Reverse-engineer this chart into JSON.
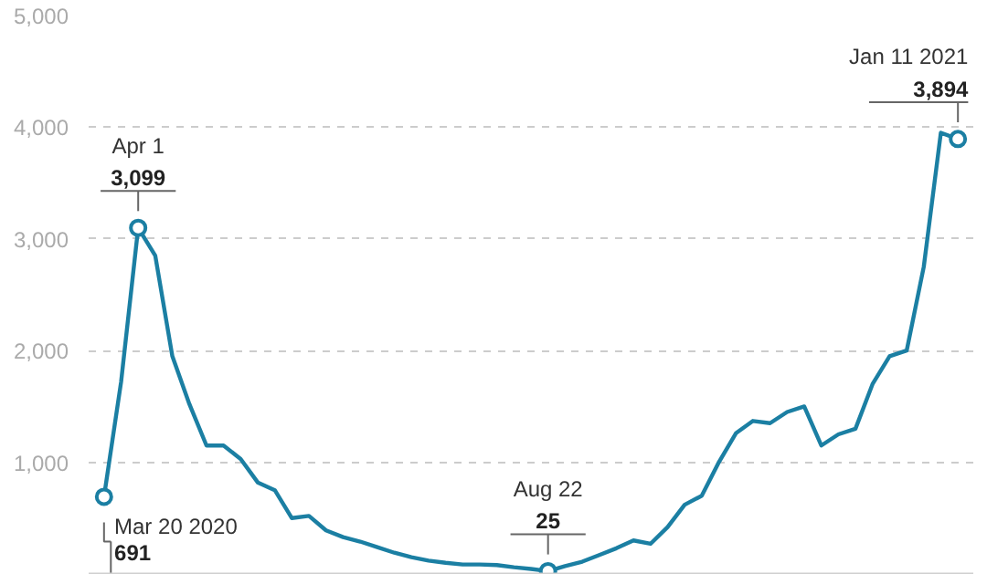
{
  "chart_data": {
    "type": "line",
    "categories": [
      null,
      null,
      null,
      null,
      null,
      null,
      null,
      null,
      null,
      null,
      null,
      null,
      null,
      null,
      null,
      null,
      null,
      null,
      null,
      null,
      null,
      null,
      null,
      null,
      null,
      null,
      null,
      null,
      null,
      null,
      null,
      null,
      null,
      null,
      null,
      null,
      null,
      null,
      null,
      null,
      null,
      null,
      null,
      null,
      null,
      null,
      null,
      null,
      null,
      null,
      null
    ],
    "series": [
      {
        "color": "#1b7fa3",
        "values": [
          691,
          1720,
          3099,
          2850,
          1950,
          1520,
          1150,
          1150,
          1030,
          820,
          750,
          500,
          520,
          390,
          330,
          290,
          240,
          190,
          150,
          120,
          100,
          85,
          85,
          80,
          60,
          45,
          25,
          70,
          110,
          170,
          230,
          300,
          270,
          420,
          620,
          700,
          1000,
          1260,
          1370,
          1350,
          1450,
          1500,
          1150,
          1250,
          1300,
          1700,
          1950,
          2000,
          2750,
          3950,
          3894
        ],
        "value_labels": [
          "691",
          null,
          "3,099",
          null,
          null,
          null,
          null,
          null,
          null,
          null,
          null,
          null,
          null,
          null,
          null,
          null,
          null,
          null,
          null,
          null,
          null,
          null,
          null,
          null,
          null,
          null,
          "25",
          null,
          null,
          null,
          null,
          null,
          null,
          null,
          null,
          null,
          null,
          null,
          null,
          null,
          null,
          null,
          null,
          null,
          null,
          null,
          null,
          null,
          null,
          null,
          "3,894"
        ]
      }
    ],
    "ylim": [
      0,
      5000
    ],
    "yticks": [
      {
        "value": 0,
        "label": null
      },
      {
        "value": 1000,
        "label": "1,000"
      },
      {
        "value": 2000,
        "label": "2,000"
      },
      {
        "value": 3000,
        "label": "3,000"
      },
      {
        "value": 4000,
        "label": "4,000"
      },
      {
        "value": 5000,
        "label": "5,000"
      }
    ],
    "tick_labels": "y",
    "grid": "y",
    "marker": "none",
    "line_style": "solid",
    "annotations": [
      "Mar 20 2020",
      "Apr 1",
      "Aug 22",
      "Jan 11 2021"
    ]
  }
}
